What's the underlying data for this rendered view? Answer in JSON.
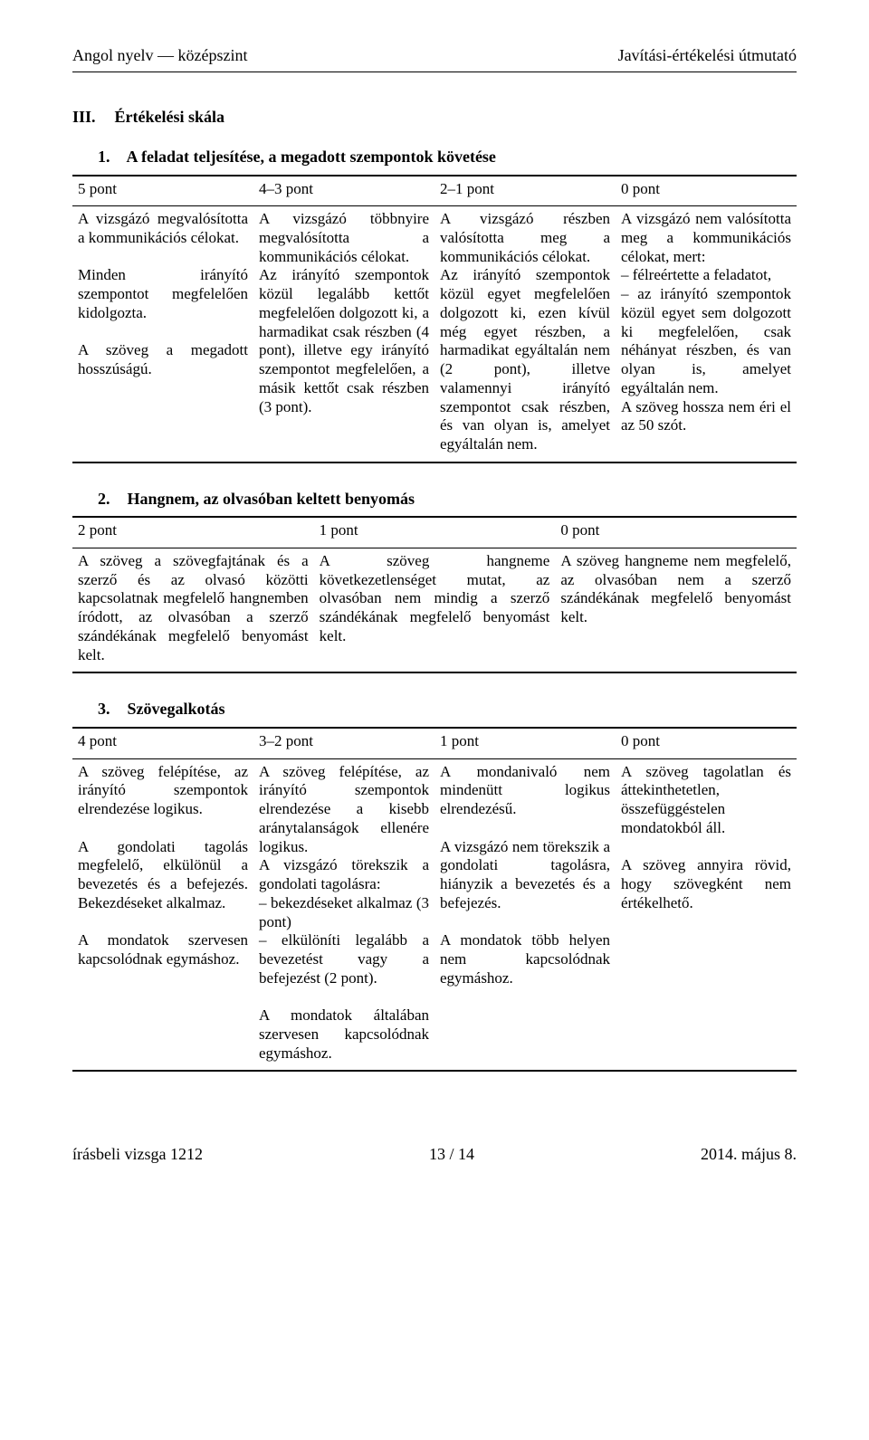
{
  "header": {
    "left": "Angol nyelv — középszint",
    "right": "Javítási-értékelési útmutató"
  },
  "section_heading": {
    "roman": "III.",
    "title": "Értékelési skála"
  },
  "sub1": {
    "num": "1.",
    "title": "A feladat teljesítése, a megadott szempontok követése"
  },
  "sub2": {
    "num": "2.",
    "title": "Hangnem, az olvasóban keltett benyomás"
  },
  "sub3": {
    "num": "3.",
    "title": "Szövegalkotás"
  },
  "t1": {
    "h": [
      "5 pont",
      "4–3 pont",
      "2–1 pont",
      "0 pont"
    ],
    "c1": "A vizsgázó megvalósította a kommunikációs célokat.\n\nMinden irányító szempontot megfelelően kidolgozta.\n\nA szöveg a megadott hosszúságú.",
    "c2": "A vizsgázó többnyire megvalósította a kommunikációs célokat.\nAz irányító szempontok közül legalább kettőt megfelelően dolgozott ki, a harmadikat csak részben (4 pont), illetve egy irányító szempontot megfelelően, a másik kettőt csak részben (3 pont).",
    "c3": "A vizsgázó részben valósította meg a kommunikációs célokat.\nAz irányító szempontok közül egyet megfelelően dolgozott ki, ezen kívül még egyet részben, a harmadikat egyáltalán nem (2 pont), illetve valamennyi irányító szempontot csak részben, és van olyan is, amelyet egyáltalán nem.",
    "c4": "A vizsgázó nem valósította meg a kommunikációs célokat, mert:\n– félreértette a feladatot,\n– az irányító szempontok közül egyet sem dolgozott ki megfelelően, csak néhányat részben, és van olyan is, amelyet egyáltalán nem.\nA szöveg hossza nem éri el az 50 szót."
  },
  "t2": {
    "h": [
      "2 pont",
      "1 pont",
      "0 pont"
    ],
    "c1": "A szöveg a szövegfajtának és a szerző és az olvasó közötti kapcsolatnak megfelelő hangnemben íródott, az olvasóban a szerző szándékának megfelelő benyomást kelt.",
    "c2": "A szöveg hangneme következetlenséget mutat, az olvasóban nem mindig a szerző szándékának megfelelő benyomást kelt.",
    "c3": "A szöveg hangneme nem megfelelő, az olvasóban nem a szerző szándékának megfelelő benyomást kelt."
  },
  "t3": {
    "h": [
      "4 pont",
      "3–2 pont",
      "1 pont",
      "0 pont"
    ],
    "c1": "A szöveg felépítése, az irányító szempontok elrendezése logikus.\n\nA gondolati tagolás megfelelő, elkülönül a bevezetés és a befejezés. Bekezdéseket alkalmaz.\n\nA mondatok szervesen kapcsolódnak egymáshoz.",
    "c2": "A szöveg felépítése, az irányító szempontok elrendezése a kisebb aránytalanságok ellenére logikus.\nA vizsgázó törekszik a gondolati tagolásra:\n– bekezdéseket alkalmaz (3 pont)\n– elkülöníti legalább a bevezetést vagy a befejezést (2 pont).\n\nA mondatok általában szervesen kapcsolódnak egymáshoz.",
    "c3": "A mondanivaló nem mindenütt logikus elrendezésű.\n\nA vizsgázó nem törekszik a gondolati tagolásra, hiányzik a bevezetés és a befejezés.\n\nA mondatok több helyen nem kapcsolódnak egymáshoz.",
    "c4": "A szöveg tagolatlan és áttekinthetetlen, összefüggéstelen mondatokból áll.\n\nA szöveg annyira rövid, hogy szövegként nem értékelhető."
  },
  "footer": {
    "left": "írásbeli vizsga 1212",
    "center": "13 / 14",
    "right": "2014. május 8."
  }
}
